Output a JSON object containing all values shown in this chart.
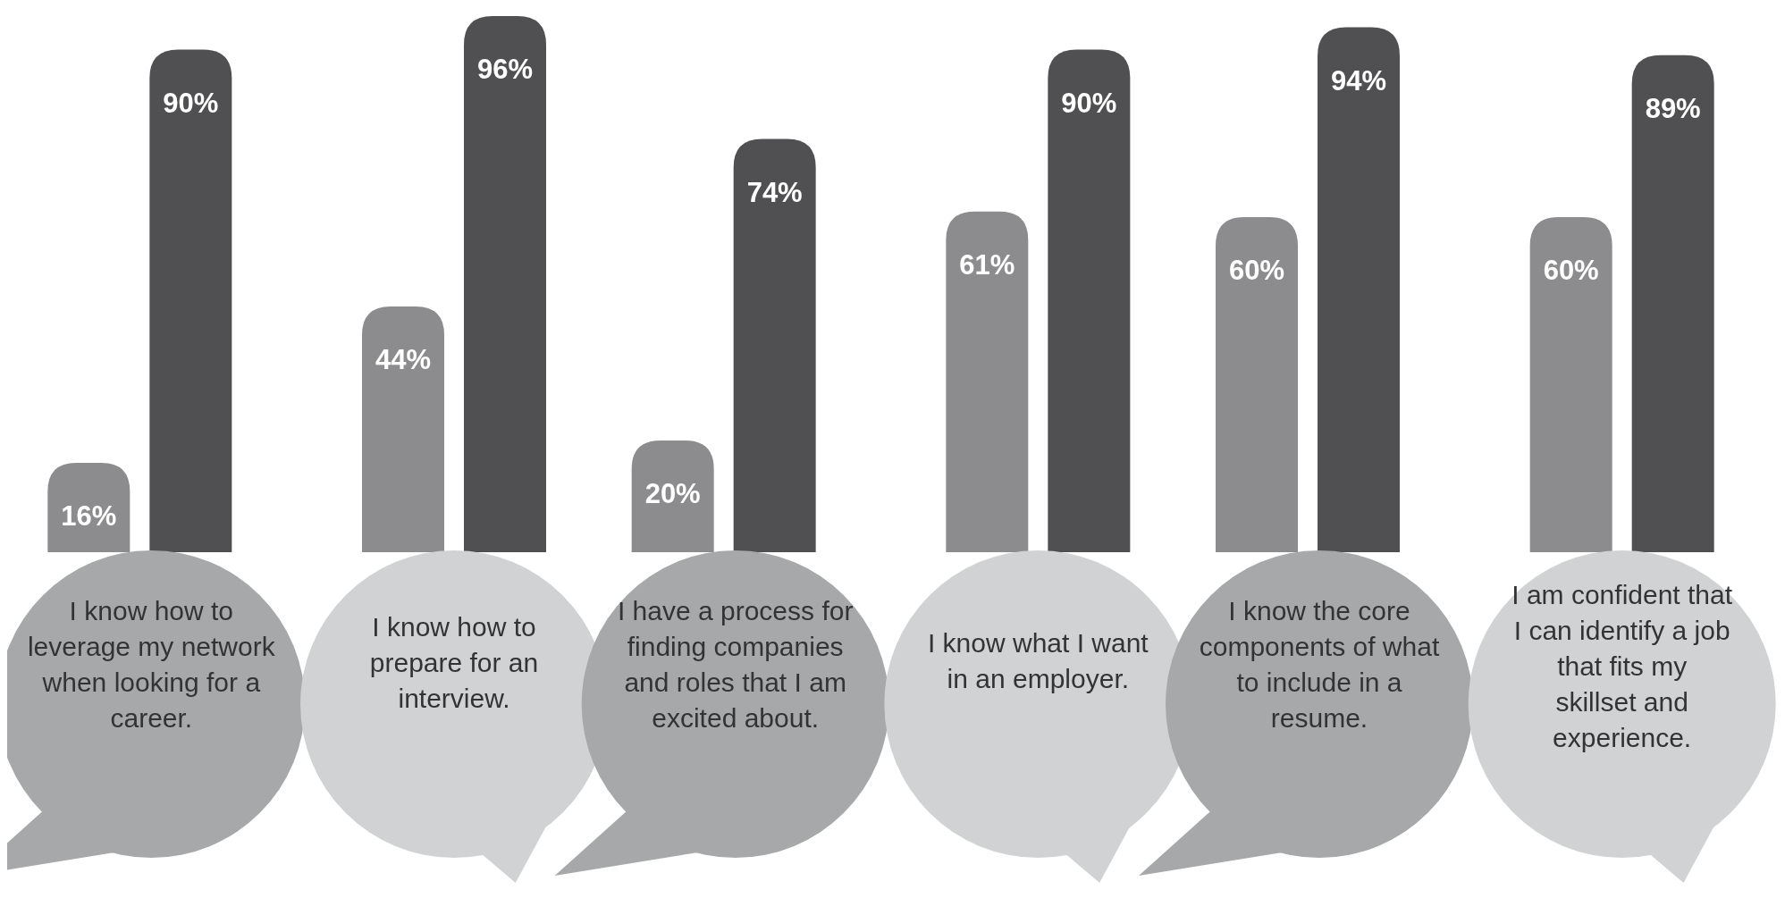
{
  "chart_data": {
    "type": "bar",
    "categories": [
      "I know how to leverage my network when looking for a career.",
      "I know how to prepare for an interview.",
      "I have a process for finding companies and roles that I am excited about.",
      "I know what I want in an employer.",
      "I know the core components of what to include in a resume.",
      "I am confident that I can identify a job that fits my skillset and experience."
    ],
    "series": [
      {
        "color": "#8c8c8e",
        "values": [
          16,
          44,
          20,
          61,
          60,
          60
        ],
        "value_labels": [
          "16%",
          "44%",
          "20%",
          "61%",
          "60%",
          "60%"
        ]
      },
      {
        "color": "#505052",
        "values": [
          90,
          96,
          74,
          90,
          94,
          89
        ],
        "value_labels": [
          "90%",
          "96%",
          "74%",
          "90%",
          "94%",
          "89%"
        ]
      }
    ]
  }
}
